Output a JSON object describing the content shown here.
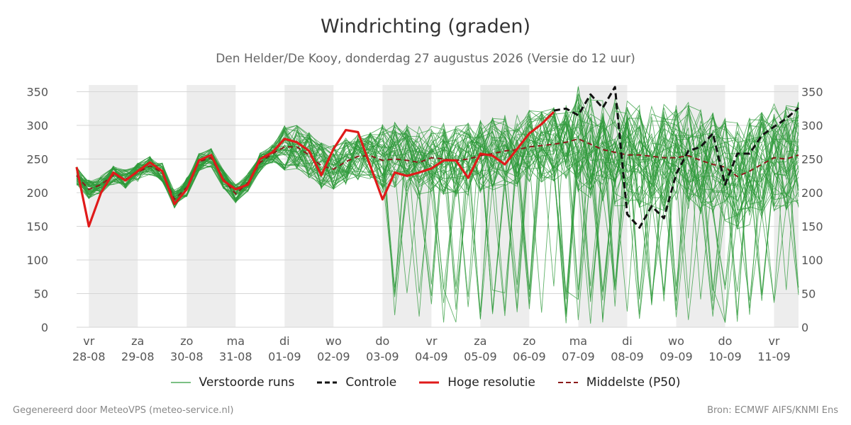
{
  "title": "Windrichting (graden)",
  "subtitle": "Den Helder/De Kooy, donderdag 27 augustus 2026 (Versie do 12 uur)",
  "footer_left": "Gegenereerd door MeteoVPS (meteo-service.nl)",
  "footer_right": "Bron: ECMWF AIFS/KNMI Ens",
  "chart_data": {
    "type": "line",
    "ylim": [
      0,
      360
    ],
    "yticks": [
      0,
      50,
      100,
      150,
      200,
      250,
      300,
      350
    ],
    "xlim": [
      -0.25,
      14.5
    ],
    "grid": true,
    "legend_position": "bottom",
    "day_ticks": [
      {
        "x": 0,
        "day": "vr",
        "date": "28-08"
      },
      {
        "x": 1,
        "day": "za",
        "date": "29-08"
      },
      {
        "x": 2,
        "day": "zo",
        "date": "30-08"
      },
      {
        "x": 3,
        "day": "ma",
        "date": "31-08"
      },
      {
        "x": 4,
        "day": "di",
        "date": "01-09"
      },
      {
        "x": 5,
        "day": "wo",
        "date": "02-09"
      },
      {
        "x": 6,
        "day": "do",
        "date": "03-09"
      },
      {
        "x": 7,
        "day": "vr",
        "date": "04-09"
      },
      {
        "x": 8,
        "day": "za",
        "date": "05-09"
      },
      {
        "x": 9,
        "day": "zo",
        "date": "06-09"
      },
      {
        "x": 10,
        "day": "ma",
        "date": "07-09"
      },
      {
        "x": 11,
        "day": "di",
        "date": "08-09"
      },
      {
        "x": 12,
        "day": "wo",
        "date": "09-09"
      },
      {
        "x": 13,
        "day": "do",
        "date": "10-09"
      },
      {
        "x": 14,
        "day": "vr",
        "date": "11-09"
      }
    ],
    "shaded_bands": [
      [
        0,
        1
      ],
      [
        2,
        3
      ],
      [
        4,
        5
      ],
      [
        6,
        7
      ],
      [
        8,
        9
      ],
      [
        10,
        11
      ],
      [
        12,
        13
      ],
      [
        14,
        14.5
      ]
    ],
    "series": [
      {
        "name": "Controle",
        "style": "dashed",
        "color": "#111111",
        "x": [
          9.5,
          9.75,
          10,
          10.25,
          10.5,
          10.75,
          11,
          11.25,
          11.5,
          11.75,
          12,
          12.25,
          12.5,
          12.75,
          13,
          13.25,
          13.5,
          13.75,
          14,
          14.25,
          14.5
        ],
        "y": [
          322,
          325,
          315,
          346,
          326,
          357,
          168,
          148,
          180,
          162,
          228,
          262,
          268,
          288,
          212,
          258,
          258,
          285,
          298,
          310,
          326
        ]
      },
      {
        "name": "Hoge resolutie",
        "style": "solid",
        "color": "#e01a1a",
        "x": [
          -0.25,
          0,
          0.25,
          0.5,
          0.75,
          1,
          1.25,
          1.5,
          1.75,
          2,
          2.25,
          2.5,
          2.75,
          3,
          3.25,
          3.5,
          3.75,
          4,
          4.25,
          4.5,
          4.75,
          5,
          5.25,
          5.5,
          5.75,
          6,
          6.25,
          6.5,
          6.75,
          7,
          7.25,
          7.5,
          7.75,
          8,
          8.25,
          8.5,
          8.75,
          9,
          9.25,
          9.5
        ],
        "y": [
          238,
          150,
          200,
          230,
          218,
          232,
          245,
          232,
          183,
          205,
          248,
          256,
          218,
          205,
          212,
          250,
          260,
          280,
          275,
          262,
          226,
          265,
          293,
          290,
          240,
          190,
          230,
          225,
          230,
          236,
          248,
          248,
          222,
          258,
          255,
          242,
          265,
          288,
          302,
          320
        ]
      },
      {
        "name": "Middelste (P50)",
        "style": "dashed",
        "color": "#8b1a1a",
        "x": [
          -0.25,
          0,
          0.25,
          0.5,
          0.75,
          1,
          1.25,
          1.5,
          1.75,
          2,
          2.25,
          2.5,
          2.75,
          3,
          3.25,
          3.5,
          3.75,
          4,
          4.25,
          4.5,
          4.75,
          5,
          5.25,
          5.5,
          5.75,
          6,
          6.25,
          6.5,
          6.75,
          7,
          7.25,
          7.5,
          7.75,
          8,
          8.25,
          8.5,
          8.75,
          9,
          9.25,
          9.5,
          9.75,
          10,
          10.25,
          10.5,
          10.75,
          11,
          11.25,
          11.5,
          11.75,
          12,
          12.25,
          12.5,
          12.75,
          13,
          13.25,
          13.5,
          13.75,
          14,
          14.25,
          14.5
        ],
        "y": [
          225,
          205,
          212,
          226,
          220,
          230,
          240,
          230,
          190,
          208,
          246,
          252,
          220,
          198,
          215,
          245,
          258,
          268,
          268,
          256,
          240,
          235,
          246,
          254,
          255,
          248,
          250,
          248,
          245,
          252,
          250,
          248,
          250,
          255,
          258,
          262,
          264,
          268,
          270,
          272,
          275,
          280,
          272,
          264,
          260,
          256,
          256,
          254,
          252,
          252,
          255,
          248,
          242,
          238,
          224,
          232,
          242,
          252,
          250,
          256
        ]
      }
    ],
    "ensemble": {
      "name": "Verstoorde runs",
      "color": "#2e9a3a",
      "members": 50,
      "y_min": 5,
      "y_max": 358
    }
  },
  "legend": [
    {
      "label": "Verstoorde runs",
      "style": "thin",
      "color": "#2e9a3a"
    },
    {
      "label": "Controle",
      "style": "dashed",
      "color": "#111111"
    },
    {
      "label": "Hoge resolutie",
      "style": "solid",
      "color": "#e01a1a"
    },
    {
      "label": "Middelste (P50)",
      "style": "dashed",
      "color": "#8b1a1a"
    }
  ]
}
